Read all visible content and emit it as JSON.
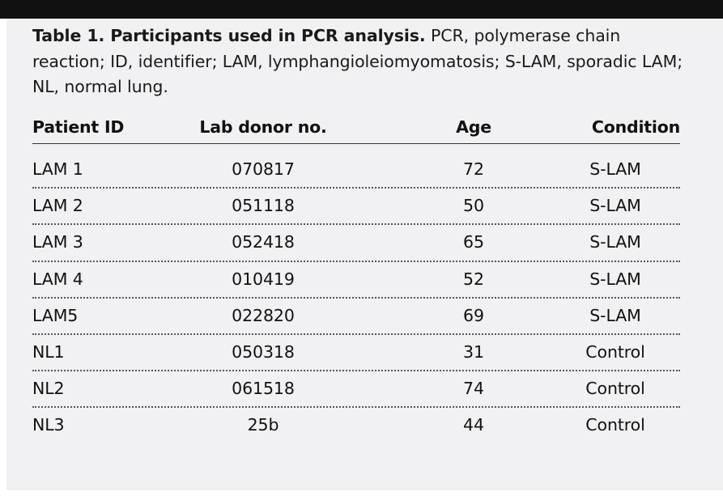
{
  "caption": {
    "label": "Table 1. Participants used in PCR analysis.",
    "text": " PCR, polymerase chain reaction; ID, identifier; LAM, lymphangioleiomyomatosis; S-LAM, sporadic LAM; NL, normal lung."
  },
  "table": {
    "headers": {
      "patient_id": "Patient ID",
      "lab_donor": "Lab donor no.",
      "age": "Age",
      "condition": "Condition"
    },
    "rows": [
      {
        "patient_id": "LAM 1",
        "lab_donor": "070817",
        "age": "72",
        "condition": "S-LAM"
      },
      {
        "patient_id": "LAM 2",
        "lab_donor": "051118",
        "age": "50",
        "condition": "S-LAM"
      },
      {
        "patient_id": "LAM 3",
        "lab_donor": "052418",
        "age": "65",
        "condition": "S-LAM"
      },
      {
        "patient_id": "LAM 4",
        "lab_donor": "010419",
        "age": "52",
        "condition": "S-LAM"
      },
      {
        "patient_id": "LAM5",
        "lab_donor": "022820",
        "age": "69",
        "condition": "S-LAM"
      },
      {
        "patient_id": "NL1",
        "lab_donor": "050318",
        "age": "31",
        "condition": "Control"
      },
      {
        "patient_id": "NL2",
        "lab_donor": "061518",
        "age": "74",
        "condition": "Control"
      },
      {
        "patient_id": "NL3",
        "lab_donor": "25b",
        "age": "44",
        "condition": "Control"
      }
    ]
  }
}
